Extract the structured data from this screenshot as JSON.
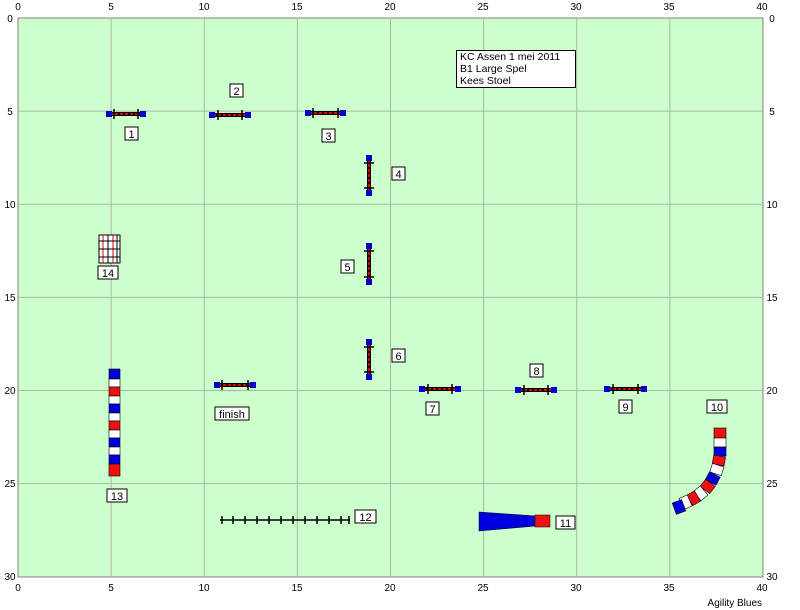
{
  "course": {
    "info": [
      "KC Assen 1 mei 2011",
      "B1 Large Spel",
      "Kees Stoel"
    ],
    "x_ticks": [
      "0",
      "5",
      "10",
      "15",
      "20",
      "25",
      "30",
      "35",
      "40"
    ],
    "y_ticks": [
      "0",
      "5",
      "10",
      "15",
      "20",
      "25",
      "30"
    ],
    "obstacle_labels": [
      "1",
      "2",
      "3",
      "4",
      "5",
      "6",
      "7",
      "8",
      "9",
      "10",
      "11",
      "12",
      "13",
      "14",
      "finish"
    ],
    "footer": "Agility Blues"
  }
}
